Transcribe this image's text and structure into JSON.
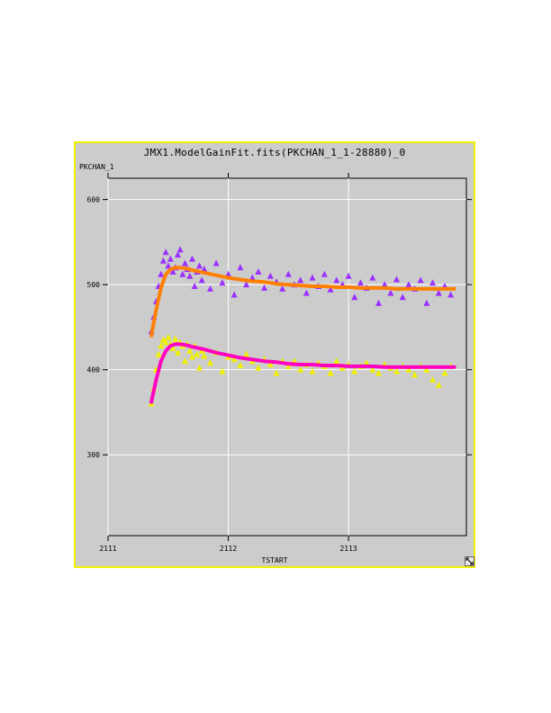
{
  "window": {
    "title": "JMX1.ModelGainFit.fits(PKCHAN_1_1-28880)_0",
    "border_color": "#f0f000",
    "background": "#cccccc",
    "resize_icon": "resize-corner-icon"
  },
  "chart_data": {
    "type": "scatter",
    "title": "JMX1.ModelGainFit.fits(PKCHAN_1_1-28880)_0",
    "xlabel": "TSTART",
    "ylabel": "PKCHAN_1",
    "xlim": [
      2111.0,
      2113.98
    ],
    "ylim": [
      205,
      625
    ],
    "xticks": [
      2111,
      2112,
      2113
    ],
    "yticks": [
      300,
      400,
      500,
      600
    ],
    "grid": true,
    "series": [
      {
        "marker": "triangle",
        "color": "#9b30ff",
        "x": [
          2111.36,
          2111.38,
          2111.4,
          2111.42,
          2111.44,
          2111.46,
          2111.48,
          2111.5,
          2111.52,
          2111.54,
          2111.56,
          2111.58,
          2111.6,
          2111.62,
          2111.64,
          2111.66,
          2111.68,
          2111.7,
          2111.72,
          2111.74,
          2111.76,
          2111.78,
          2111.8,
          2111.85,
          2111.9,
          2111.95,
          2112.0,
          2112.05,
          2112.1,
          2112.15,
          2112.2,
          2112.25,
          2112.3,
          2112.35,
          2112.4,
          2112.45,
          2112.5,
          2112.55,
          2112.6,
          2112.65,
          2112.7,
          2112.75,
          2112.8,
          2112.85,
          2112.9,
          2112.95,
          2113.0,
          2113.05,
          2113.1,
          2113.15,
          2113.2,
          2113.25,
          2113.3,
          2113.35,
          2113.4,
          2113.45,
          2113.5,
          2113.55,
          2113.6,
          2113.65,
          2113.7,
          2113.75,
          2113.8,
          2113.85
        ],
        "y": [
          445,
          462,
          480,
          498,
          512,
          528,
          538,
          522,
          530,
          515,
          520,
          535,
          541,
          512,
          525,
          518,
          510,
          530,
          498,
          515,
          522,
          505,
          518,
          495,
          525,
          502,
          512,
          488,
          520,
          500,
          508,
          515,
          496,
          510,
          503,
          495,
          512,
          500,
          505,
          490,
          508,
          498,
          512,
          494,
          505,
          500,
          510,
          485,
          502,
          496,
          508,
          478,
          500,
          490,
          506,
          485,
          500,
          495,
          505,
          478,
          502,
          490,
          498,
          488
        ]
      },
      {
        "marker": "triangle",
        "color": "#f0f000",
        "x": [
          2111.36,
          2111.38,
          2111.4,
          2111.42,
          2111.44,
          2111.46,
          2111.48,
          2111.5,
          2111.52,
          2111.54,
          2111.56,
          2111.58,
          2111.6,
          2111.62,
          2111.64,
          2111.66,
          2111.68,
          2111.7,
          2111.72,
          2111.74,
          2111.76,
          2111.78,
          2111.8,
          2111.85,
          2111.9,
          2111.95,
          2112.0,
          2112.05,
          2112.1,
          2112.15,
          2112.2,
          2112.25,
          2112.3,
          2112.35,
          2112.4,
          2112.45,
          2112.5,
          2112.55,
          2112.6,
          2112.65,
          2112.7,
          2112.75,
          2112.8,
          2112.85,
          2112.9,
          2112.95,
          2113.0,
          2113.05,
          2113.1,
          2113.15,
          2113.2,
          2113.25,
          2113.3,
          2113.35,
          2113.4,
          2113.45,
          2113.5,
          2113.55,
          2113.6,
          2113.65,
          2113.7,
          2113.75,
          2113.8,
          2113.85
        ],
        "y": [
          360,
          378,
          400,
          418,
          428,
          435,
          432,
          438,
          430,
          425,
          436,
          420,
          432,
          428,
          410,
          430,
          422,
          415,
          428,
          418,
          402,
          422,
          416,
          408,
          420,
          398,
          415,
          412,
          405,
          418,
          410,
          402,
          412,
          406,
          396,
          410,
          404,
          410,
          400,
          406,
          398,
          408,
          404,
          396,
          410,
          402,
          406,
          398,
          404,
          408,
          400,
          396,
          406,
          402,
          398,
          404,
          400,
          394,
          404,
          400,
          388,
          382,
          396,
          404
        ]
      },
      {
        "marker": "line",
        "color": "#ff8000",
        "x": [
          2111.36,
          2111.4,
          2111.44,
          2111.48,
          2111.52,
          2111.56,
          2111.6,
          2111.65,
          2111.7,
          2111.8,
          2111.9,
          2112.0,
          2112.1,
          2112.2,
          2112.3,
          2112.4,
          2112.5,
          2112.6,
          2112.7,
          2112.8,
          2112.9,
          2113.0,
          2113.1,
          2113.2,
          2113.3,
          2113.4,
          2113.5,
          2113.6,
          2113.7,
          2113.8,
          2113.88
        ],
        "y": [
          440,
          470,
          496,
          512,
          518,
          520,
          520,
          519,
          517,
          514,
          511,
          508,
          506,
          504,
          503,
          501,
          500,
          499,
          498,
          498,
          497,
          497,
          496,
          496,
          496,
          495,
          495,
          495,
          495,
          495,
          495
        ]
      },
      {
        "marker": "line",
        "color": "#ff00c0",
        "x": [
          2111.36,
          2111.4,
          2111.44,
          2111.48,
          2111.52,
          2111.56,
          2111.6,
          2111.65,
          2111.7,
          2111.8,
          2111.9,
          2112.0,
          2112.1,
          2112.2,
          2112.3,
          2112.4,
          2112.5,
          2112.6,
          2112.7,
          2112.8,
          2112.9,
          2113.0,
          2113.1,
          2113.2,
          2113.3,
          2113.4,
          2113.5,
          2113.6,
          2113.7,
          2113.8,
          2113.88
        ],
        "y": [
          362,
          388,
          410,
          422,
          428,
          430,
          430,
          429,
          427,
          424,
          420,
          417,
          414,
          412,
          410,
          409,
          407,
          406,
          406,
          405,
          405,
          404,
          404,
          404,
          403,
          403,
          403,
          403,
          403,
          403,
          403
        ]
      }
    ]
  }
}
